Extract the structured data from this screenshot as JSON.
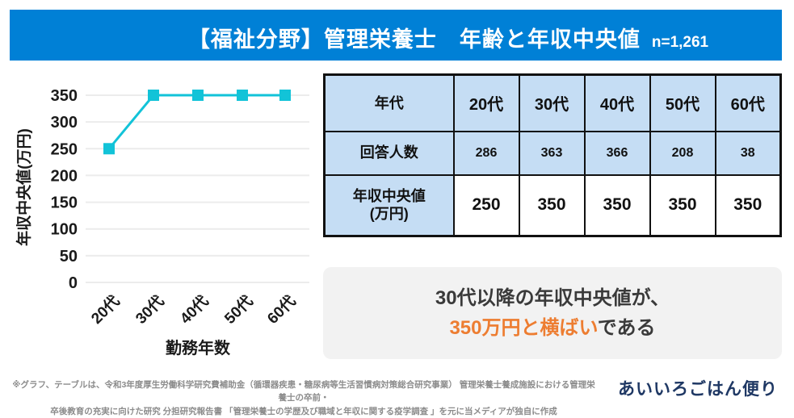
{
  "header": {
    "title": "【福祉分野】管理栄養士　年齢と年収中央値",
    "sample_size": "n=1,261",
    "bg_color": "#0080D6",
    "text_color": "#FFFFFF"
  },
  "chart_data": [
    {
      "type": "line",
      "title": "",
      "x": [
        "20代",
        "30代",
        "40代",
        "50代",
        "60代"
      ],
      "series": [
        {
          "name": "年収中央値",
          "values": [
            250,
            350,
            350,
            350,
            350
          ]
        }
      ],
      "xlabel": "勤務年数",
      "ylabel": "年収中央値(万円)",
      "ylim": [
        0,
        350
      ],
      "yticks": [
        0,
        50,
        100,
        150,
        200,
        250,
        300,
        350
      ],
      "grid": true,
      "legend": "none",
      "line_color": "#12C3D8",
      "marker": "square",
      "marker_color": "#12C3D8",
      "gridline_color": "#ECECEC",
      "tick_label_color": "#1a1a1a"
    },
    {
      "type": "table",
      "columns": [
        "年代",
        "20代",
        "30代",
        "40代",
        "50代",
        "60代"
      ],
      "rows": [
        {
          "label": "回答人数",
          "values": [
            "286",
            "363",
            "366",
            "208",
            "38"
          ]
        },
        {
          "label": "年収中央値\n(万円)",
          "values": [
            "250",
            "350",
            "350",
            "350",
            "350"
          ]
        }
      ],
      "header_bg": "#C5DDF4",
      "row_bgs": [
        "#C5DDF4",
        "#FFFFFF"
      ],
      "border_color": "#111111"
    }
  ],
  "conclusion": {
    "line1": "30代以降の年収中央値が、",
    "highlight": "350万円と横ばい",
    "suffix": "である",
    "highlight_color": "#ED7D31",
    "bg_color": "#F2F2F2"
  },
  "footnote": {
    "line1": "※グラフ、テーブルは、令和3年度厚生労働科学研究費補助金（循環器疾患・糖尿病等生活習慣病対策総合研究事業） 管理栄養士養成施設における管理栄養士の卒前・",
    "line2": "卒後教育の充実に向けた研究 分担研究報告書 「管理栄養士の学歴及び職域と年収に関する疫学調査 」を元に当メディアが独自に作成"
  },
  "logo": {
    "text": "あいいろごはん便り",
    "color": "#1F3864"
  }
}
